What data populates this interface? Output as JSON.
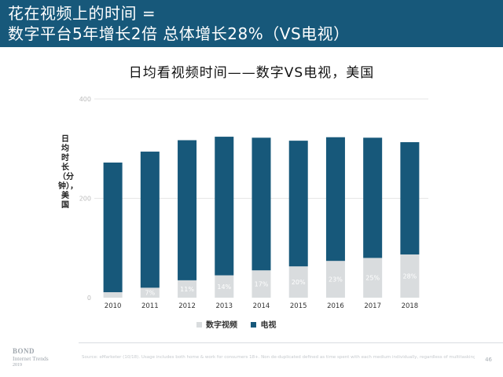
{
  "header": {
    "title_line1": "花在视频上的时间 =",
    "title_line2": "数字平台5年增长2倍 总体增长28%（VS电视）"
  },
  "colors": {
    "header_bg": "#17587a",
    "tv": "#17587a",
    "digital": "#d9dcde",
    "label_light": "#ffffff",
    "axis_text": "#bbbbbb"
  },
  "chart_data": {
    "type": "bar",
    "stacked": true,
    "title": "日均看视频时间——数字VS电视，美国",
    "ylabel": "日均时长（分钟），美国",
    "ylim": [
      0,
      400
    ],
    "yticks": [
      0,
      200,
      400
    ],
    "grid": true,
    "legend_position": "bottom",
    "categories": [
      "2010",
      "2011",
      "2012",
      "2013",
      "2014",
      "2015",
      "2016",
      "2017",
      "2018"
    ],
    "series": [
      {
        "name": "数字视频",
        "values": [
          11,
          20,
          35,
          45,
          55,
          63,
          74,
          80,
          87
        ],
        "color_key": "digital"
      },
      {
        "name": "电视",
        "values": [
          261,
          274,
          282,
          279,
          267,
          253,
          249,
          242,
          226
        ],
        "color_key": "tv"
      }
    ],
    "data_labels": [
      "",
      "7%",
      "11%",
      "14%",
      "17%",
      "20%",
      "23%",
      "25%",
      "28%"
    ]
  },
  "footer": {
    "source": "Source: eMarketer (10/18). Usage includes both home & work for consumers 18+. Non de-duplicated defined as time spent with each medium individually, regardless of multitasking.",
    "page_number": "46",
    "logo_line1": "BOND",
    "logo_line2": "Internet Trends",
    "logo_line3": "2019"
  }
}
